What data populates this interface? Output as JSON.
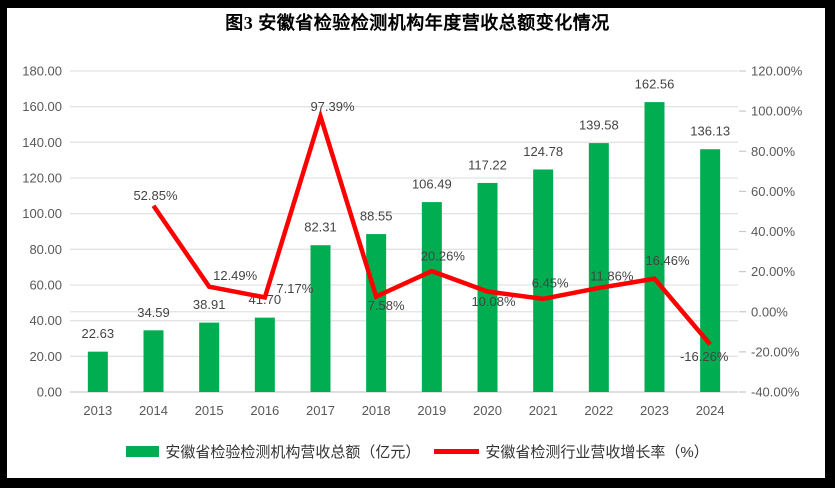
{
  "window": {
    "background": "#ffffff",
    "frame_color": "#000000"
  },
  "chart_data": {
    "type": "bar+line",
    "title": "图3 安徽省检验检测机构年度营收总额变化情况",
    "categories": [
      "2013",
      "2014",
      "2015",
      "2016",
      "2017",
      "2018",
      "2019",
      "2020",
      "2021",
      "2022",
      "2023",
      "2024"
    ],
    "series": [
      {
        "name": "安徽省检验检测机构营收总额（亿元）",
        "type": "bar",
        "axis": "left",
        "color": "#00AD50",
        "values": [
          22.63,
          34.59,
          38.91,
          41.7,
          82.31,
          88.55,
          106.49,
          117.22,
          124.78,
          139.58,
          162.56,
          136.13
        ],
        "data_labels": [
          "22.63",
          "34.59",
          "38.91",
          "41.70",
          "82.31",
          "88.55",
          "106.49",
          "117.22",
          "124.78",
          "139.58",
          "162.56",
          "136.13"
        ]
      },
      {
        "name": "安徽省检测行业营收增长率（%）",
        "type": "line",
        "axis": "right",
        "color": "#FF0000",
        "values": [
          null,
          52.85,
          12.49,
          7.17,
          97.39,
          7.58,
          20.26,
          10.08,
          6.45,
          11.86,
          16.46,
          -16.26
        ],
        "data_labels": [
          null,
          "52.85%",
          "12.49%",
          "7.17%",
          "97.39%",
          "7.58%",
          "20.26%",
          "10.08%",
          "6.45%",
          "11.86%",
          "16.46%",
          "-16.26%"
        ],
        "label_offsets": [
          [
            0,
            0
          ],
          [
            2,
            -10
          ],
          [
            26,
            -11
          ],
          [
            30,
            -9
          ],
          [
            12,
            -10
          ],
          [
            10,
            9
          ],
          [
            11,
            -15
          ],
          [
            6,
            10
          ],
          [
            7,
            -16
          ],
          [
            13,
            -12
          ],
          [
            13,
            -18
          ],
          [
            -6,
            12
          ]
        ]
      }
    ],
    "axes": {
      "left": {
        "min": 0,
        "max": 180,
        "step": 20,
        "tick_values": [
          0,
          20,
          40,
          60,
          80,
          100,
          120,
          140,
          160,
          180
        ],
        "tick_labels": [
          "0.00",
          "20.00",
          "40.00",
          "60.00",
          "80.00",
          "100.00",
          "120.00",
          "140.00",
          "160.00",
          "180.00"
        ]
      },
      "right": {
        "min": -40,
        "max": 120,
        "step": 20,
        "tick_values": [
          -40,
          -20,
          0,
          20,
          40,
          60,
          80,
          100,
          120
        ],
        "tick_labels": [
          "-40.00%",
          "-20.00%",
          "0.00%",
          "20.00%",
          "40.00%",
          "60.00%",
          "80.00%",
          "100.00%",
          "120.00%"
        ]
      }
    },
    "grid": {
      "show": true,
      "color": "#E3E3E3",
      "axis_line_color": "#C9C9C9",
      "secondary_zero_line": true
    },
    "legend_position": "bottom",
    "text_colors": {
      "tick": "#595959",
      "data_label": "#444444",
      "title": "#000000",
      "legend": "#333333"
    }
  }
}
